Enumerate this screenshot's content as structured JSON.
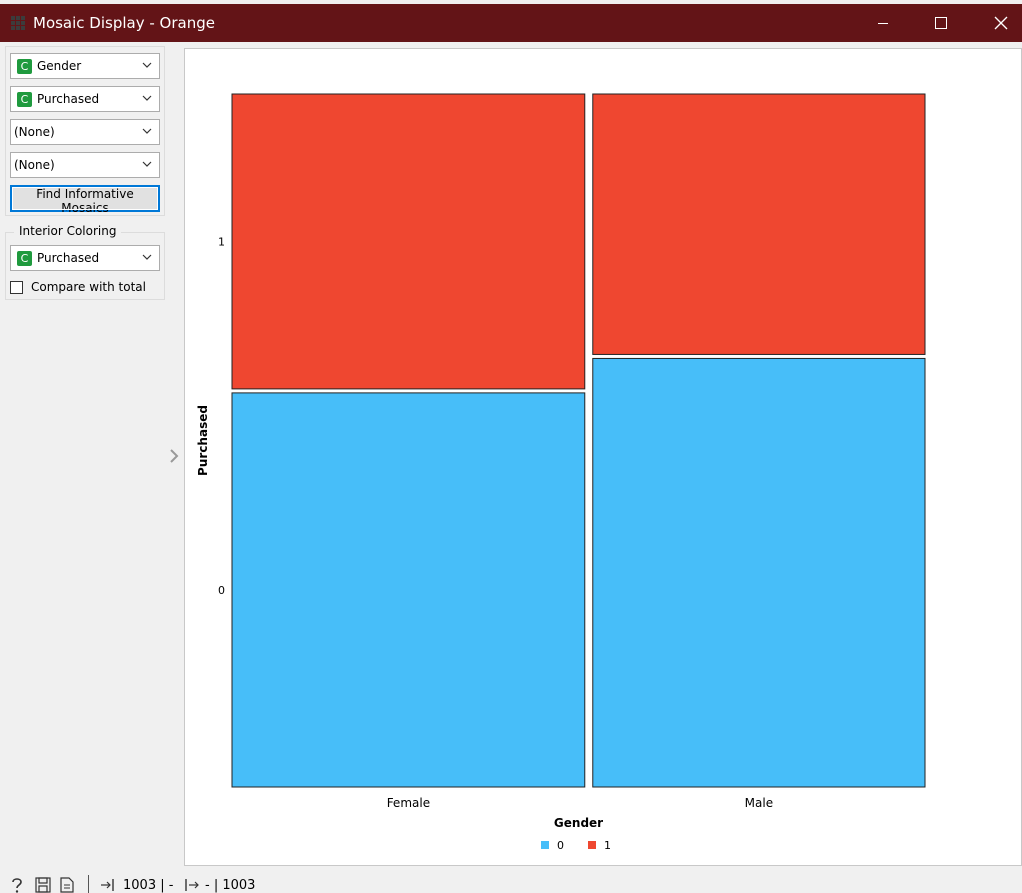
{
  "window": {
    "title": "Mosaic Display - Orange"
  },
  "controls": {
    "variables": [
      {
        "label": "Gender",
        "type_badge": "C"
      },
      {
        "label": "Purchased",
        "type_badge": "C"
      },
      {
        "label": "(None)",
        "type_badge": ""
      },
      {
        "label": "(None)",
        "type_badge": ""
      }
    ],
    "find_button_label": "Find Informative Mosaics",
    "interior_coloring": {
      "group_label": "Interior Coloring",
      "selected": "Purchased",
      "type_badge": "C",
      "compare_with_total_label": "Compare with total",
      "compare_with_total_checked": false
    }
  },
  "chart_data": {
    "type": "mosaic",
    "xlabel": "Gender",
    "ylabel": "Purchased",
    "categories": [
      "Female",
      "Male"
    ],
    "y_ticks": [
      "1",
      "0"
    ],
    "column_widths": [
      0.515,
      0.485
    ],
    "column_shares": [
      {
        "category": "Female",
        "1": 0.428,
        "0": 0.572
      },
      {
        "category": "Male",
        "1": 0.378,
        "0": 0.622
      }
    ],
    "legend": [
      {
        "label": "0",
        "color": "#47bef9"
      },
      {
        "label": "1",
        "color": "#ef4730"
      }
    ],
    "colors": {
      "0": "#47bef9",
      "1": "#ef4730"
    }
  },
  "statusbar": {
    "input_count": "1003 | -",
    "output_count": "- | 1003"
  },
  "colors": {
    "titlebar": "#631417",
    "accent": "#0078d7",
    "type_badge": "#1f9a3e"
  }
}
